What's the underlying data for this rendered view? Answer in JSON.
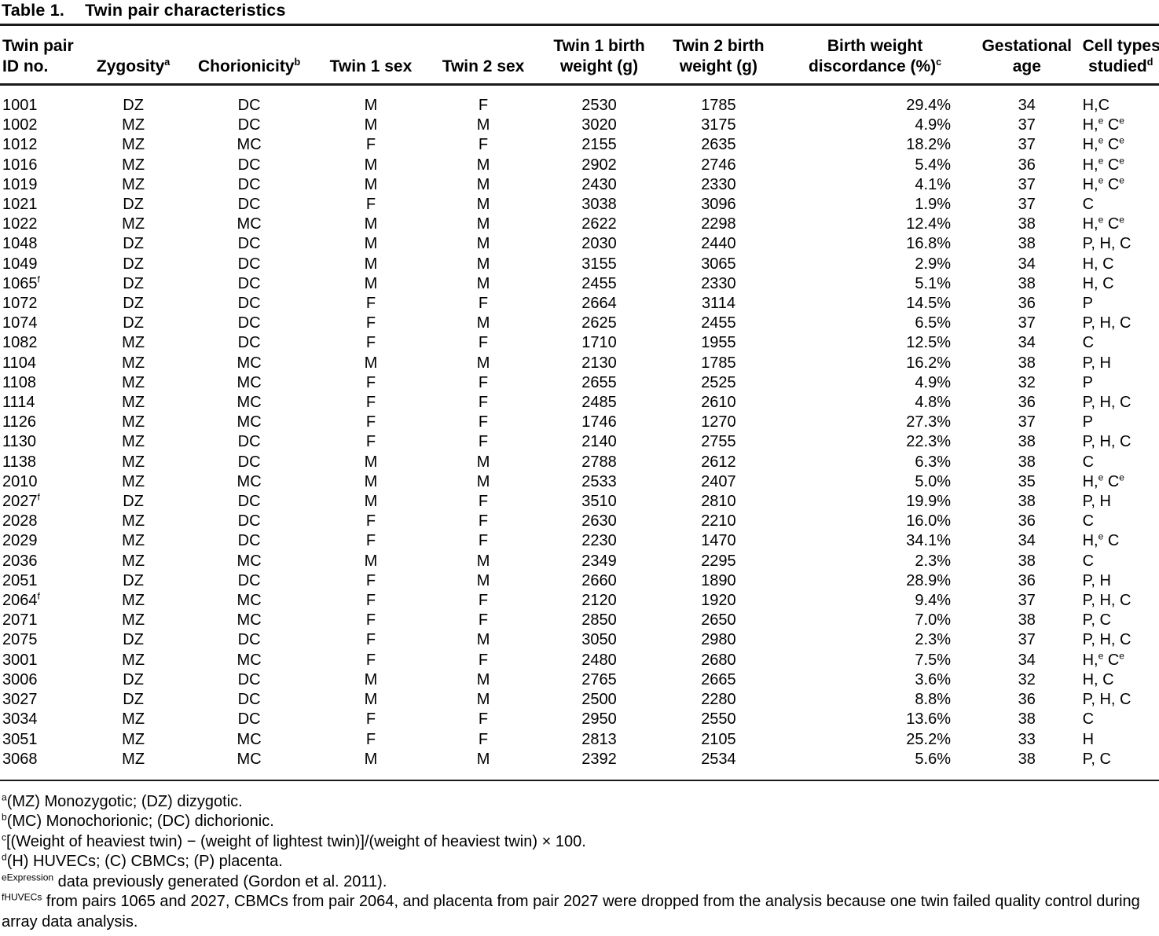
{
  "colors": {
    "text": "#000000",
    "rule": "#1a1a1a",
    "background": "#ffffff"
  },
  "table": {
    "label": "Table 1.",
    "title": "Twin pair characteristics",
    "columns": [
      {
        "label": "Twin pair\nID no.",
        "width": 7.2,
        "header_align": "left",
        "align": "left"
      },
      {
        "label": "Zygosity^a",
        "width": 8.6,
        "header_align": "center",
        "align": "center"
      },
      {
        "label": "Chorionicity^b",
        "width": 11.4,
        "header_align": "center",
        "align": "center"
      },
      {
        "label": "Twin 1 sex",
        "width": 9.6,
        "header_align": "center",
        "align": "center"
      },
      {
        "label": "Twin 2 sex",
        "width": 9.8,
        "header_align": "center",
        "align": "center"
      },
      {
        "label": "Twin 1 birth\nweight (g)",
        "width": 10.2,
        "header_align": "center",
        "align": "center"
      },
      {
        "label": "Twin 2 birth\nweight (g)",
        "width": 10.4,
        "header_align": "center",
        "align": "center"
      },
      {
        "label": "Birth weight\ndiscordance (%)^c",
        "width": 16.6,
        "header_align": "center",
        "align": "right"
      },
      {
        "label": "Gestational\nage",
        "width": 9.6,
        "header_align": "center",
        "align": "center"
      },
      {
        "label": "Cell types\nstudied^d",
        "width": 6.6,
        "header_align": "center",
        "align": "left"
      }
    ],
    "rows": [
      [
        "1001",
        "DZ",
        "DC",
        "M",
        "F",
        "2530",
        "1785",
        "29.4%",
        "34",
        "H,C"
      ],
      [
        "1002",
        "MZ",
        "DC",
        "M",
        "M",
        "3020",
        "3175",
        "4.9%",
        "37",
        "H,^e C^e"
      ],
      [
        "1012",
        "MZ",
        "MC",
        "F",
        "F",
        "2155",
        "2635",
        "18.2%",
        "37",
        "H,^e C^e"
      ],
      [
        "1016",
        "MZ",
        "DC",
        "M",
        "M",
        "2902",
        "2746",
        "5.4%",
        "36",
        "H,^e C^e"
      ],
      [
        "1019",
        "MZ",
        "DC",
        "M",
        "M",
        "2430",
        "2330",
        "4.1%",
        "37",
        "H,^e C^e"
      ],
      [
        "1021",
        "DZ",
        "DC",
        "F",
        "M",
        "3038",
        "3096",
        "1.9%",
        "37",
        "C"
      ],
      [
        "1022",
        "MZ",
        "MC",
        "M",
        "M",
        "2622",
        "2298",
        "12.4%",
        "38",
        "H,^e C^e"
      ],
      [
        "1048",
        "DZ",
        "DC",
        "M",
        "M",
        "2030",
        "2440",
        "16.8%",
        "38",
        "P, H, C"
      ],
      [
        "1049",
        "DZ",
        "DC",
        "M",
        "M",
        "3155",
        "3065",
        "2.9%",
        "34",
        "H, C"
      ],
      [
        "1065^f",
        "DZ",
        "DC",
        "M",
        "M",
        "2455",
        "2330",
        "5.1%",
        "38",
        "H, C"
      ],
      [
        "1072",
        "DZ",
        "DC",
        "F",
        "F",
        "2664",
        "3114",
        "14.5%",
        "36",
        "P"
      ],
      [
        "1074",
        "DZ",
        "DC",
        "F",
        "M",
        "2625",
        "2455",
        "6.5%",
        "37",
        "P, H, C"
      ],
      [
        "1082",
        "MZ",
        "DC",
        "F",
        "F",
        "1710",
        "1955",
        "12.5%",
        "34",
        "C"
      ],
      [
        "1104",
        "MZ",
        "MC",
        "M",
        "M",
        "2130",
        "1785",
        "16.2%",
        "38",
        "P, H"
      ],
      [
        "1108",
        "MZ",
        "MC",
        "F",
        "F",
        "2655",
        "2525",
        "4.9%",
        "32",
        "P"
      ],
      [
        "1114",
        "MZ",
        "MC",
        "F",
        "F",
        "2485",
        "2610",
        "4.8%",
        "36",
        "P, H, C"
      ],
      [
        "1126",
        "MZ",
        "MC",
        "F",
        "F",
        "1746",
        "1270",
        "27.3%",
        "37",
        "P"
      ],
      [
        "1130",
        "MZ",
        "DC",
        "F",
        "F",
        "2140",
        "2755",
        "22.3%",
        "38",
        "P, H, C"
      ],
      [
        "1138",
        "MZ",
        "DC",
        "M",
        "M",
        "2788",
        "2612",
        "6.3%",
        "38",
        "C"
      ],
      [
        "2010",
        "MZ",
        "MC",
        "M",
        "M",
        "2533",
        "2407",
        "5.0%",
        "35",
        "H,^e C^e"
      ],
      [
        "2027^f",
        "DZ",
        "DC",
        "M",
        "F",
        "3510",
        "2810",
        "19.9%",
        "38",
        "P, H"
      ],
      [
        "2028",
        "MZ",
        "DC",
        "F",
        "F",
        "2630",
        "2210",
        "16.0%",
        "36",
        "C"
      ],
      [
        "2029",
        "MZ",
        "DC",
        "F",
        "F",
        "2230",
        "1470",
        "34.1%",
        "34",
        "H,^e C"
      ],
      [
        "2036",
        "MZ",
        "MC",
        "M",
        "M",
        "2349",
        "2295",
        "2.3%",
        "38",
        "C"
      ],
      [
        "2051",
        "DZ",
        "DC",
        "F",
        "M",
        "2660",
        "1890",
        "28.9%",
        "36",
        "P, H"
      ],
      [
        "2064^f",
        "MZ",
        "MC",
        "F",
        "F",
        "2120",
        "1920",
        "9.4%",
        "37",
        "P, H, C"
      ],
      [
        "2071",
        "MZ",
        "MC",
        "F",
        "F",
        "2850",
        "2650",
        "7.0%",
        "38",
        "P, C"
      ],
      [
        "2075",
        "DZ",
        "DC",
        "F",
        "M",
        "3050",
        "2980",
        "2.3%",
        "37",
        "P, H, C"
      ],
      [
        "3001",
        "MZ",
        "MC",
        "F",
        "F",
        "2480",
        "2680",
        "7.5%",
        "34",
        "H,^e C^e"
      ],
      [
        "3006",
        "DZ",
        "DC",
        "M",
        "M",
        "2765",
        "2665",
        "3.6%",
        "32",
        "H, C"
      ],
      [
        "3027",
        "DZ",
        "DC",
        "M",
        "M",
        "2500",
        "2280",
        "8.8%",
        "36",
        "P, H, C"
      ],
      [
        "3034",
        "MZ",
        "DC",
        "F",
        "F",
        "2950",
        "2550",
        "13.6%",
        "38",
        "C"
      ],
      [
        "3051",
        "MZ",
        "MC",
        "F",
        "F",
        "2813",
        "2105",
        "25.2%",
        "33",
        "H"
      ],
      [
        "3068",
        "MZ",
        "MC",
        "M",
        "M",
        "2392",
        "2534",
        "5.6%",
        "38",
        "P, C"
      ]
    ],
    "footnotes": [
      "^a(MZ) Monozygotic; (DZ) dizygotic.",
      "^b(MC) Monochorionic; (DC) dichorionic.",
      "^c[(Weight of heaviest twin) − (weight of lightest twin)]/(weight of heaviest twin) × 100.",
      "^d(H) HUVECs; (C) CBMCs; (P) placenta.",
      "^eExpression data previously generated (Gordon et al. 2011).",
      "^fHUVECs from pairs 1065 and 2027, CBMCs from pair 2064, and placenta from pair 2027 were dropped from the analysis because one twin failed quality control during array data analysis."
    ]
  }
}
